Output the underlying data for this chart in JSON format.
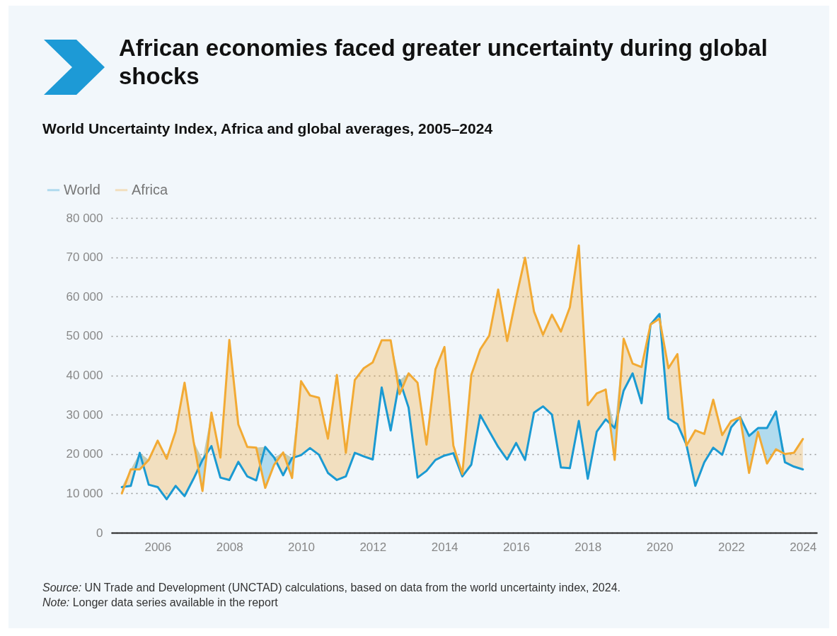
{
  "chart_data": {
    "type": "line",
    "title": "African economies faced greater uncertainty during global shocks",
    "subtitle": "World Uncertainty Index, Africa and global averages, 2005–2024",
    "x": [
      2005,
      2005.25,
      2005.5,
      2005.75,
      2006,
      2006.25,
      2006.5,
      2006.75,
      2007,
      2007.25,
      2007.5,
      2007.75,
      2008,
      2008.25,
      2008.5,
      2008.75,
      2009,
      2009.25,
      2009.5,
      2009.75,
      2010,
      2010.25,
      2010.5,
      2010.75,
      2011,
      2011.25,
      2011.5,
      2011.75,
      2012,
      2012.25,
      2012.5,
      2012.75,
      2013,
      2013.25,
      2013.5,
      2013.75,
      2014,
      2014.25,
      2014.5,
      2014.75,
      2015,
      2015.25,
      2015.5,
      2015.75,
      2016,
      2016.25,
      2016.5,
      2016.75,
      2017,
      2017.25,
      2017.5,
      2017.75,
      2018,
      2018.25,
      2018.5,
      2018.75,
      2019,
      2019.25,
      2019.5,
      2019.75,
      2020,
      2020.25,
      2020.5,
      2020.75,
      2021,
      2021.25,
      2021.5,
      2021.75,
      2022,
      2022.25,
      2022.5,
      2022.75,
      2023,
      2023.25,
      2023.5,
      2023.75,
      2024
    ],
    "series": [
      {
        "name": "World",
        "color": "#1b9ad2",
        "lower": [
          10000,
          16100,
          16100,
          18500,
          23400,
          18800,
          25700,
          38100,
          23300,
          10600,
          30500,
          19100,
          49000,
          27500,
          21800,
          21600,
          11400,
          17300,
          20400,
          13900,
          38500,
          34900,
          34300,
          23900,
          40100,
          20300,
          38800,
          41800,
          43300,
          48900,
          48900,
          35200,
          40500,
          38100,
          22400,
          41500,
          47200,
          22100,
          14900,
          40100,
          46600,
          50100,
          61800,
          48700,
          59700,
          69900,
          56200,
          50300,
          55400,
          51100,
          57300,
          73000,
          32400,
          35400,
          36400,
          18500,
          49300,
          43000,
          42100,
          52900,
          54400,
          41800,
          45400,
          22100,
          26000,
          25100,
          33800,
          24800,
          28400,
          29300,
          15200,
          25600,
          17600,
          21200,
          20000,
          20300,
          23800
        ],
        "upper": [
          11600,
          16100,
          20300,
          18500,
          23400,
          18800,
          25700,
          38100,
          23300,
          18500,
          30500,
          19100,
          49000,
          27500,
          21800,
          21600,
          21800,
          19100,
          20400,
          19000,
          38500,
          34900,
          34300,
          23900,
          40100,
          20300,
          38800,
          41800,
          43300,
          48900,
          48900,
          38800,
          40500,
          38100,
          22400,
          41500,
          47200,
          22100,
          14900,
          40100,
          46600,
          50100,
          61800,
          48700,
          59700,
          69900,
          56200,
          50300,
          55400,
          51100,
          57300,
          73000,
          32400,
          35400,
          36400,
          26600,
          49300,
          43000,
          42100,
          52900,
          55600,
          41800,
          45400,
          22400,
          26000,
          25100,
          33800,
          24800,
          28400,
          29400,
          24600,
          26600,
          26600,
          30800,
          20000,
          20300,
          23800
        ],
        "values": [
          11600,
          11900,
          20300,
          12200,
          11600,
          8500,
          11900,
          9300,
          13700,
          18500,
          22000,
          14000,
          13400,
          18000,
          14300,
          13300,
          21800,
          19100,
          14600,
          19000,
          19700,
          21500,
          19800,
          15200,
          13400,
          14300,
          20300,
          19400,
          18600,
          36900,
          26000,
          38800,
          31800,
          14000,
          15700,
          18500,
          19600,
          20200,
          14300,
          17300,
          29900,
          25800,
          21800,
          18600,
          22800,
          18500,
          30500,
          32100,
          30000,
          16600,
          16400,
          28400,
          13700,
          25700,
          28800,
          26600,
          36100,
          40500,
          32900,
          52900,
          55600,
          29000,
          27600,
          22400,
          11900,
          17900,
          21600,
          19800,
          26800,
          29400,
          24600,
          26600,
          26600,
          30800,
          17900,
          16800,
          16100
        ]
      },
      {
        "name": "Africa",
        "color": "#f2aa34",
        "lower": [
          11600,
          11900,
          20300,
          12200,
          11600,
          8500,
          11900,
          9300,
          13700,
          18500,
          22000,
          14000,
          13400,
          18000,
          14300,
          13300,
          21800,
          19100,
          14600,
          19000,
          19700,
          21500,
          19800,
          15200,
          13400,
          14300,
          20300,
          19400,
          18600,
          36900,
          26000,
          38800,
          31800,
          14000,
          15700,
          18500,
          19600,
          20200,
          14300,
          17300,
          29900,
          25800,
          21800,
          18600,
          22800,
          18500,
          30500,
          32100,
          30000,
          16600,
          16400,
          28400,
          13700,
          25700,
          28800,
          26600,
          36100,
          40500,
          32900,
          52900,
          55600,
          29000,
          27600,
          22400,
          11900,
          17900,
          21600,
          19800,
          26800,
          29400,
          24600,
          26600,
          26600,
          30800,
          17900,
          16800,
          16100
        ],
        "upper": [
          11600,
          16100,
          20300,
          18500,
          23400,
          18800,
          25700,
          38100,
          23300,
          18500,
          30500,
          19100,
          49000,
          27500,
          21800,
          21600,
          21800,
          19100,
          20400,
          19000,
          38500,
          34900,
          34300,
          23900,
          40100,
          20300,
          38800,
          41800,
          43300,
          48900,
          48900,
          38800,
          40500,
          38100,
          22400,
          41500,
          47200,
          22100,
          14900,
          40100,
          46600,
          50100,
          61800,
          48700,
          59700,
          69900,
          56200,
          50300,
          55400,
          51100,
          57300,
          73000,
          32400,
          35400,
          36400,
          26600,
          49300,
          43000,
          42100,
          52900,
          55600,
          41800,
          45400,
          22400,
          26000,
          25100,
          33800,
          24800,
          28400,
          29400,
          24600,
          26600,
          26600,
          30800,
          20000,
          20300,
          23800
        ],
        "values": [
          10000,
          16100,
          16100,
          18500,
          23400,
          18800,
          25700,
          38100,
          23300,
          10600,
          30500,
          19100,
          49000,
          27500,
          21800,
          21600,
          11400,
          17300,
          20400,
          13900,
          38500,
          34900,
          34300,
          23900,
          40100,
          20300,
          38800,
          41800,
          43300,
          48900,
          48900,
          35200,
          40500,
          38100,
          22400,
          41500,
          47200,
          22100,
          14900,
          40100,
          46600,
          50100,
          61800,
          48700,
          59700,
          69900,
          56200,
          50300,
          55400,
          51100,
          57300,
          73000,
          32400,
          35400,
          36400,
          18500,
          49300,
          43000,
          42100,
          52900,
          54400,
          41800,
          45400,
          22100,
          26000,
          25100,
          33800,
          24800,
          28400,
          29300,
          15200,
          25600,
          17600,
          21200,
          20000,
          20300,
          23800
        ]
      }
    ],
    "xlim": [
      2004.7,
      2024.4
    ],
    "xticks": [
      2006,
      2008,
      2010,
      2012,
      2014,
      2016,
      2018,
      2020,
      2022,
      2024
    ],
    "ylim": [
      0,
      80000
    ],
    "yticks": [
      0,
      {
        "value": 10000,
        "label": "10 000"
      },
      {
        "value": 20000,
        "label": "20 000"
      },
      {
        "value": 30000,
        "label": "30 000"
      },
      {
        "value": 40000,
        "label": "40 000"
      },
      {
        "value": 50000,
        "label": "50 000"
      },
      {
        "value": 60000,
        "label": "60 000"
      },
      {
        "value": 70000,
        "label": "70 000"
      },
      {
        "value": 80000,
        "label": "80 000"
      }
    ],
    "grid": "y",
    "legend": "top left",
    "annotations": [
      "Source: UN Trade and Development (UNCTAD) calculations, based on data from the world uncertainty index, 2024.",
      "Note: Longer data series available in the report"
    ]
  }
}
